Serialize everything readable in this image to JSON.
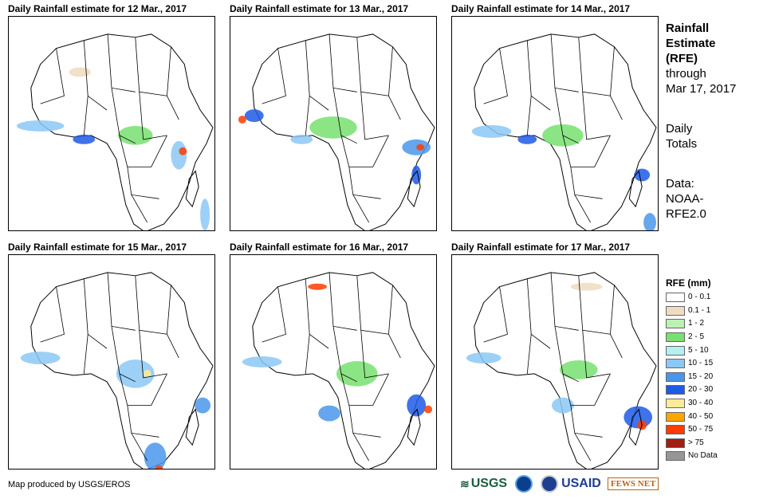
{
  "panels": [
    {
      "title": "Daily Rainfall estimate for 12 Mar., 2017"
    },
    {
      "title": "Daily Rainfall estimate for 13 Mar., 2017"
    },
    {
      "title": "Daily Rainfall estimate for 14 Mar., 2017"
    },
    {
      "title": "Daily Rainfall estimate for 15 Mar., 2017"
    },
    {
      "title": "Daily Rainfall estimate for 16 Mar., 2017"
    },
    {
      "title": "Daily Rainfall estimate for 17 Mar., 2017"
    }
  ],
  "sidebar": {
    "title_lines": [
      "Rainfall",
      "Estimate",
      "(RFE)"
    ],
    "through": "through",
    "date": "Mar 17, 2017",
    "daily_lines": [
      "Daily",
      "Totals"
    ],
    "data_lines": [
      "Data:",
      "NOAA-",
      "RFE2.0"
    ]
  },
  "legend": {
    "title": "RFE (mm)",
    "items": [
      {
        "label": "0 - 0.1",
        "color": "#ffffff"
      },
      {
        "label": "0.1 - 1",
        "color": "#f0dcc0"
      },
      {
        "label": "1 - 2",
        "color": "#bdf0b4"
      },
      {
        "label": "2 - 5",
        "color": "#78e070"
      },
      {
        "label": "5 - 10",
        "color": "#b4f0f0"
      },
      {
        "label": "10 - 15",
        "color": "#8cc8f5"
      },
      {
        "label": "15 - 20",
        "color": "#4b96eb"
      },
      {
        "label": "20 - 30",
        "color": "#1e5ae6"
      },
      {
        "label": "30 - 40",
        "color": "#ffeb96"
      },
      {
        "label": "40 - 50",
        "color": "#ffa500"
      },
      {
        "label": "50 - 75",
        "color": "#ff3c00"
      },
      {
        "label": "> 75",
        "color": "#a01e14"
      },
      {
        "label": "No Data",
        "color": "#969696"
      }
    ]
  },
  "footer": {
    "credit": "Map produced by USGS/EROS",
    "logo_usgs": "USGS",
    "logo_usaid": "USAID",
    "logo_fews": "FEWS NET"
  }
}
